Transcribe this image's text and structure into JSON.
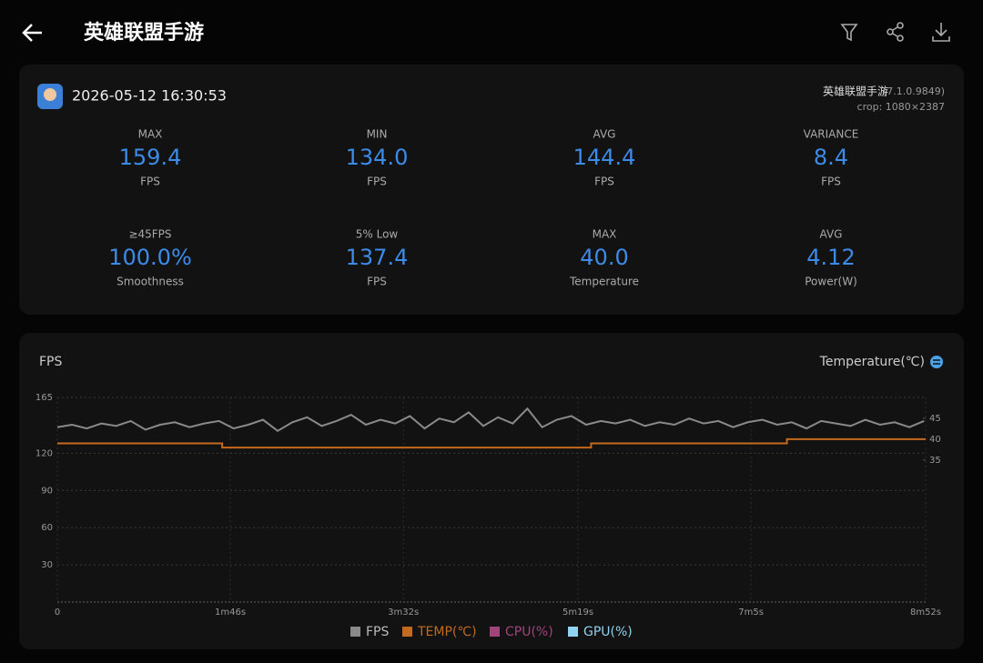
{
  "header": {
    "title": "英雄联盟手游"
  },
  "summary": {
    "datetime": "2026-05-12 16:30:53",
    "app": "英雄联盟手游",
    "version": "(7.1.0.9849)",
    "crop": "crop: 1080×2387",
    "stats": [
      {
        "label": "MAX",
        "value": "159.4",
        "unit": "FPS"
      },
      {
        "label": "MIN",
        "value": "134.0",
        "unit": "FPS"
      },
      {
        "label": "AVG",
        "value": "144.4",
        "unit": "FPS"
      },
      {
        "label": "VARIANCE",
        "value": "8.4",
        "unit": "FPS"
      },
      {
        "label": "≥45FPS",
        "value": "100.0%",
        "unit": "Smoothness"
      },
      {
        "label": "5% Low",
        "value": "137.4",
        "unit": "FPS"
      },
      {
        "label": "MAX",
        "value": "40.0",
        "unit": "Temperature"
      },
      {
        "label": "AVG",
        "value": "4.12",
        "unit": "Power(W)"
      }
    ]
  },
  "chart_data": {
    "type": "line",
    "title": "FPS",
    "y2_label": "Temperature(℃)",
    "xlim": [
      0,
      532
    ],
    "xticks": [
      0,
      {
        "value": 106,
        "label": "1m46s"
      },
      {
        "value": 212,
        "label": "3m32s"
      },
      {
        "value": 319,
        "label": "5m19s"
      },
      {
        "value": 425,
        "label": "7m5s"
      },
      {
        "value": 532,
        "label": "8m52s"
      }
    ],
    "ylim": [
      0,
      165
    ],
    "yticks": [
      30,
      60,
      90,
      120,
      165
    ],
    "y2lim": [
      1,
      50
    ],
    "y2ticks": [
      35,
      40,
      45
    ],
    "grid": true,
    "series": [
      {
        "name": "FPS",
        "color": "#8a8a8a",
        "x": [
          0,
          9,
          18,
          27,
          36,
          45,
          54,
          63,
          72,
          81,
          90,
          99,
          108,
          117,
          126,
          135,
          144,
          153,
          162,
          171,
          180,
          189,
          198,
          207,
          216,
          225,
          234,
          243,
          252,
          261,
          270,
          279,
          288,
          297,
          306,
          315,
          324,
          333,
          342,
          351,
          360,
          369,
          378,
          387,
          396,
          405,
          414,
          423,
          432,
          441,
          450,
          459,
          468,
          477,
          486,
          495,
          504,
          513,
          522,
          531
        ],
        "values": [
          141,
          143,
          140,
          144,
          142,
          146,
          139,
          143,
          145,
          141,
          144,
          146,
          140,
          143,
          147,
          138,
          145,
          149,
          142,
          146,
          151,
          143,
          147,
          144,
          150,
          140,
          148,
          145,
          153,
          142,
          149,
          144,
          156,
          141,
          147,
          150,
          143,
          146,
          144,
          147,
          142,
          145,
          143,
          148,
          144,
          146,
          141,
          145,
          147,
          143,
          145,
          140,
          146,
          144,
          142,
          147,
          143,
          145,
          141,
          146
        ]
      },
      {
        "name": "TEMP(℃)",
        "color": "#c46a1c",
        "axis": "y2",
        "x": [
          0,
          101,
          101,
          327,
          327,
          447,
          447,
          532
        ],
        "values": [
          39,
          39,
          38,
          38,
          39,
          39,
          40,
          40
        ]
      },
      {
        "name": "CPU(%)",
        "color": "#a0457a"
      },
      {
        "name": "GPU(%)",
        "color": "#8fd3f0"
      }
    ]
  }
}
